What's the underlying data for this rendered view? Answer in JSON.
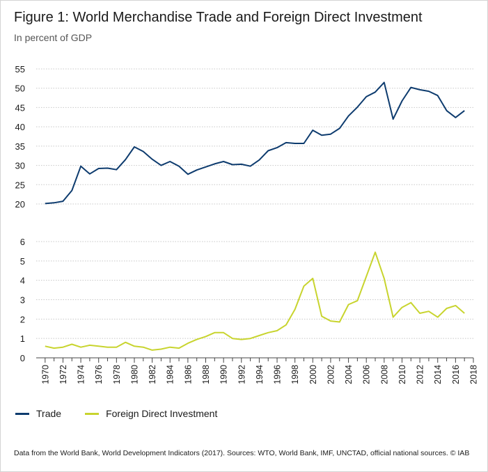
{
  "title": "Figure 1: World Merchandise Trade and Foreign Direct Investment",
  "subtitle": "In percent of GDP",
  "source": "Data from the World Bank, World Development Indicators (2017). Sources: WTO, World Bank, IMF, UNCTAD, official national sources. © IAB",
  "colors": {
    "trade": "#0d3b6e",
    "fdi": "#c8d42e",
    "grid": "#c8c8c8",
    "axis": "#444444"
  },
  "legend": [
    {
      "name": "Trade",
      "color": "#0d3b6e"
    },
    {
      "name": "Foreign Direct Investment",
      "color": "#c8d42e"
    }
  ],
  "chart_data": [
    {
      "type": "line",
      "series": [
        {
          "name": "Trade",
          "x": [
            1970,
            1971,
            1972,
            1973,
            1974,
            1975,
            1976,
            1977,
            1978,
            1979,
            1980,
            1981,
            1982,
            1983,
            1984,
            1985,
            1986,
            1987,
            1988,
            1989,
            1990,
            1991,
            1992,
            1993,
            1994,
            1995,
            1996,
            1997,
            1998,
            1999,
            2000,
            2001,
            2002,
            2003,
            2004,
            2005,
            2006,
            2007,
            2008,
            2009,
            2010,
            2011,
            2012,
            2013,
            2014,
            2015,
            2016,
            2017
          ],
          "values": [
            20.1,
            20.3,
            20.7,
            23.5,
            29.8,
            27.8,
            29.2,
            29.3,
            28.9,
            31.5,
            34.8,
            33.6,
            31.6,
            30.0,
            31.0,
            29.8,
            27.7,
            28.8,
            29.6,
            30.4,
            31.0,
            30.2,
            30.3,
            29.8,
            31.4,
            33.8,
            34.6,
            35.9,
            35.7,
            35.7,
            39.1,
            37.8,
            38.1,
            39.6,
            42.8,
            45.1,
            47.8,
            49.0,
            51.5,
            42.0,
            46.7,
            50.2,
            49.6,
            49.2,
            48.1,
            44.2,
            42.4,
            44.2
          ]
        }
      ],
      "yticks": [
        20,
        25,
        30,
        35,
        40,
        45,
        50,
        55
      ],
      "ylim": [
        20,
        55
      ],
      "grid": true
    },
    {
      "type": "line",
      "series": [
        {
          "name": "Foreign Direct Investment",
          "x": [
            1970,
            1971,
            1972,
            1973,
            1974,
            1975,
            1976,
            1977,
            1978,
            1979,
            1980,
            1981,
            1982,
            1983,
            1984,
            1985,
            1986,
            1987,
            1988,
            1989,
            1990,
            1991,
            1992,
            1993,
            1994,
            1995,
            1996,
            1997,
            1998,
            1999,
            2000,
            2001,
            2002,
            2003,
            2004,
            2005,
            2006,
            2007,
            2008,
            2009,
            2010,
            2011,
            2012,
            2013,
            2014,
            2015,
            2016,
            2017
          ],
          "values": [
            0.6,
            0.5,
            0.55,
            0.7,
            0.55,
            0.65,
            0.6,
            0.55,
            0.55,
            0.8,
            0.6,
            0.55,
            0.4,
            0.45,
            0.55,
            0.5,
            0.75,
            0.95,
            1.1,
            1.3,
            1.3,
            1.0,
            0.95,
            1.0,
            1.15,
            1.3,
            1.4,
            1.7,
            2.5,
            3.7,
            4.1,
            2.15,
            1.9,
            1.85,
            2.75,
            2.95,
            4.2,
            5.45,
            4.1,
            2.1,
            2.6,
            2.85,
            2.3,
            2.4,
            2.1,
            2.55,
            2.7,
            2.3
          ]
        }
      ],
      "yticks": [
        0,
        1,
        2,
        3,
        4,
        5,
        6
      ],
      "ylim": [
        0,
        6
      ],
      "grid": true
    }
  ],
  "x_axis": {
    "tick_labels": [
      "1970",
      "1972",
      "1974",
      "1976",
      "1978",
      "1980",
      "1982",
      "1984",
      "1986",
      "1988",
      "1990",
      "1992",
      "1994",
      "1996",
      "1998",
      "2000",
      "2002",
      "2004",
      "2006",
      "2008",
      "2010",
      "2012",
      "2014",
      "2016",
      "2018"
    ],
    "xlim": [
      1969,
      2018
    ]
  }
}
